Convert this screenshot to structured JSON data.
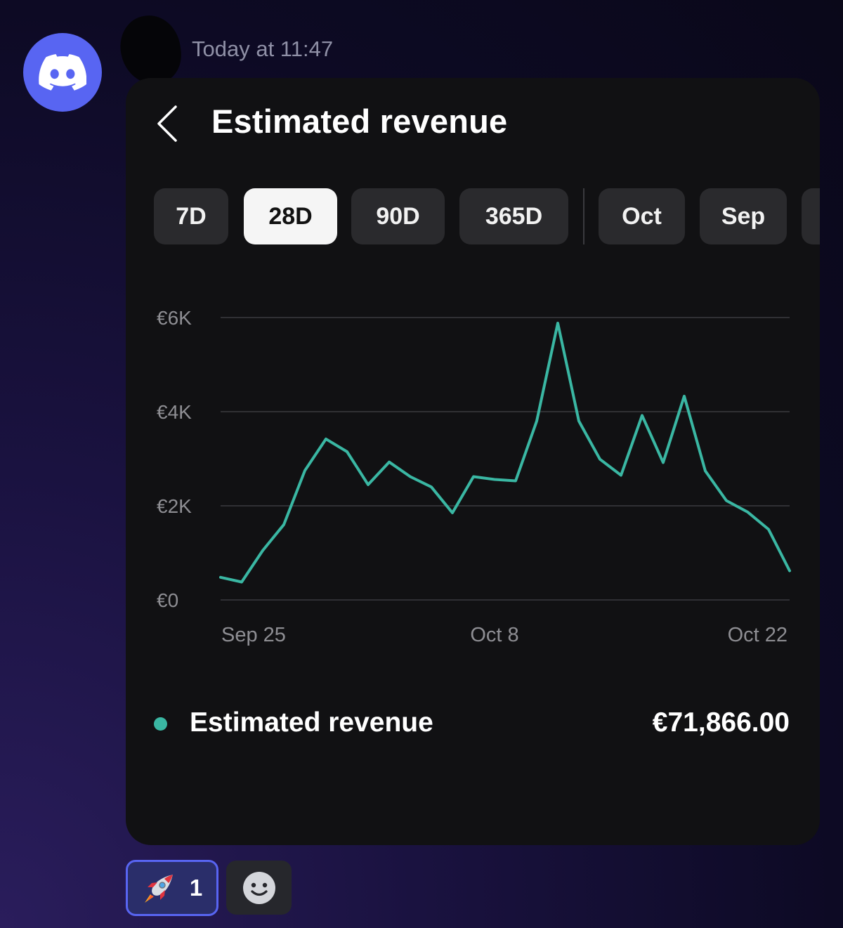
{
  "message": {
    "timestamp": "Today at 11:47"
  },
  "icons": {
    "avatar": "discord-logo-icon",
    "back": "chevron-left-icon",
    "reaction_emoji": "rocket-icon",
    "add_reaction": "smiley-face-icon"
  },
  "card": {
    "title": "Estimated revenue",
    "ranges": [
      "7D",
      "28D",
      "90D",
      "365D"
    ],
    "months": [
      "Oct",
      "Sep"
    ],
    "selected_range": "28D"
  },
  "legend": {
    "label": "Estimated revenue",
    "value": "€71,866.00",
    "color": "#3ab7a3"
  },
  "reactions": [
    {
      "emoji": "rocket",
      "count": "1"
    }
  ],
  "colors": {
    "discord_brand": "#5865f2",
    "series": "#3ab7a3",
    "active_chip_bg": "#f5f5f5",
    "card_bg": "#111113"
  },
  "chart_data": {
    "type": "line",
    "ylim": [
      0,
      6000
    ],
    "y_ticks": [
      {
        "value": 6000,
        "label": "€6K"
      },
      {
        "value": 4000,
        "label": "€4K"
      },
      {
        "value": 2000,
        "label": "€2K"
      },
      {
        "value": 0,
        "label": "€0"
      }
    ],
    "x_ticks": [
      "Sep 25",
      "Oct 8",
      "Oct 22"
    ],
    "grid": true,
    "series": [
      {
        "color": "#3ab7a3",
        "values": [
          480,
          380,
          1050,
          1600,
          2750,
          3420,
          3150,
          2450,
          2930,
          2620,
          2400,
          1850,
          2620,
          2560,
          2530,
          3800,
          5880,
          3800,
          2990,
          2650,
          3920,
          2920,
          4330,
          2740,
          2110,
          1870,
          1500,
          620
        ]
      }
    ]
  }
}
